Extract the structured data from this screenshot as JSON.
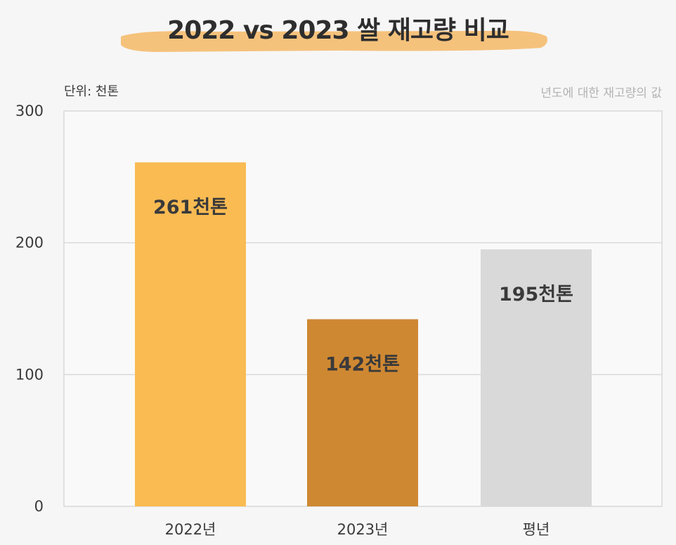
{
  "chart_data": {
    "type": "bar",
    "title": "2022 vs 2023 쌀 재고량 비교",
    "subtitle": "년도에 대한 재고량의 값",
    "unit_label": "단위: 천톤",
    "categories": [
      "2022년",
      "2023년",
      "평년"
    ],
    "values": [
      261,
      142,
      195
    ],
    "value_labels": [
      "261천톤",
      "142천톤",
      "195천톤"
    ],
    "bar_colors": [
      "#f9bb52",
      "#cf8832",
      "#d9d9d9"
    ],
    "ylim": [
      0,
      300
    ],
    "yticks": [
      0,
      100,
      200,
      300
    ],
    "grid": true,
    "xlabel": "",
    "ylabel": ""
  },
  "colors": {
    "background": "#f6f6f6",
    "plot_background": "#f9f9f9",
    "grid": "#d9d9d9",
    "title_brush": "#f5c27c"
  }
}
